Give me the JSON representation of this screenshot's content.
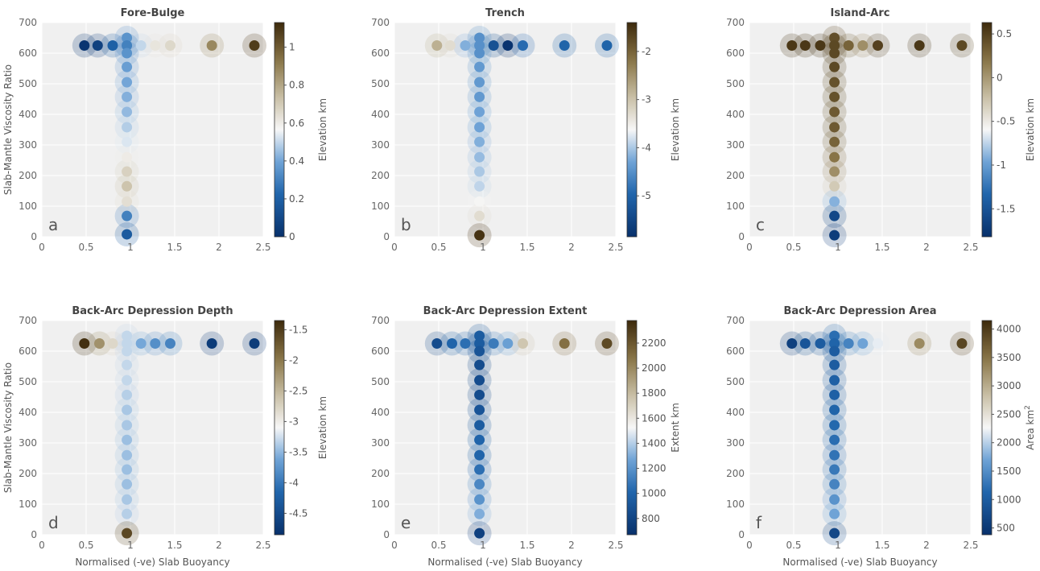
{
  "figure": {
    "ylabel": "Slab-Mantle Viscosity Ratio",
    "xlabel": "Normalised (-ve) Slab Buoyancy"
  },
  "colors": {
    "plot_bg": "#f0f0f0",
    "grid": "#ffffff",
    "cmap_low": "#08306b",
    "cmap_mid": "#f7f7f7",
    "cmap_high": "#3d2a0c"
  },
  "chart_data": [
    {
      "type": "scatter",
      "letter": "a",
      "title": "Fore-Bulge",
      "colorbar_label": "Elevation km",
      "unit_sup": "",
      "clim": [
        0,
        1.13
      ],
      "cticks": [
        0,
        0.2,
        0.4,
        0.6,
        0.8,
        1
      ],
      "ylabel": "Slab-Mantle Viscosity Ratio",
      "xlabel": "",
      "xlim": [
        0,
        2.5
      ],
      "ylim": [
        0,
        700
      ],
      "xticks": [
        0,
        0.5,
        1,
        1.5,
        2,
        2.5
      ],
      "yticks": [
        0,
        100,
        200,
        300,
        400,
        500,
        600,
        700
      ],
      "points": [
        {
          "x": 0.48,
          "y": 625,
          "v": 0.02
        },
        {
          "x": 0.63,
          "y": 625,
          "v": 0.07
        },
        {
          "x": 0.8,
          "y": 625,
          "v": 0.2
        },
        {
          "x": 1.12,
          "y": 625,
          "v": 0.5
        },
        {
          "x": 1.28,
          "y": 625,
          "v": 0.62
        },
        {
          "x": 1.45,
          "y": 625,
          "v": 0.66
        },
        {
          "x": 1.92,
          "y": 625,
          "v": 0.88
        },
        {
          "x": 2.4,
          "y": 625,
          "v": 1.08
        },
        {
          "x": 0.96,
          "y": 650,
          "v": 0.35
        },
        {
          "x": 0.96,
          "y": 625,
          "v": 0.3
        },
        {
          "x": 0.96,
          "y": 600,
          "v": 0.35
        },
        {
          "x": 0.96,
          "y": 555,
          "v": 0.38
        },
        {
          "x": 0.96,
          "y": 505,
          "v": 0.4
        },
        {
          "x": 0.96,
          "y": 457,
          "v": 0.42
        },
        {
          "x": 0.96,
          "y": 408,
          "v": 0.44
        },
        {
          "x": 0.96,
          "y": 358,
          "v": 0.48
        },
        {
          "x": 0.96,
          "y": 310,
          "v": 0.53
        },
        {
          "x": 0.96,
          "y": 260,
          "v": 0.6
        },
        {
          "x": 0.96,
          "y": 213,
          "v": 0.68
        },
        {
          "x": 0.96,
          "y": 165,
          "v": 0.72
        },
        {
          "x": 0.96,
          "y": 115,
          "v": 0.64
        },
        {
          "x": 0.96,
          "y": 68,
          "v": 0.3
        },
        {
          "x": 0.96,
          "y": 8,
          "v": 0.18
        }
      ]
    },
    {
      "type": "scatter",
      "letter": "b",
      "title": "Trench",
      "colorbar_label": "Elevation km",
      "unit_sup": "",
      "clim": [
        -5.85,
        -1.4
      ],
      "cticks": [
        -5,
        -4,
        -3,
        -2
      ],
      "ylabel": "",
      "xlabel": "",
      "xlim": [
        0,
        2.5
      ],
      "ylim": [
        0,
        700
      ],
      "xticks": [
        0,
        0.5,
        1,
        1.5,
        2,
        2.5
      ],
      "yticks": [
        0,
        100,
        200,
        300,
        400,
        500,
        600,
        700
      ],
      "points": [
        {
          "x": 0.48,
          "y": 625,
          "v": -2.8
        },
        {
          "x": 0.63,
          "y": 625,
          "v": -3.3
        },
        {
          "x": 0.8,
          "y": 625,
          "v": -4.2
        },
        {
          "x": 1.12,
          "y": 625,
          "v": -5.3
        },
        {
          "x": 1.28,
          "y": 625,
          "v": -5.8
        },
        {
          "x": 1.45,
          "y": 625,
          "v": -4.9
        },
        {
          "x": 1.92,
          "y": 625,
          "v": -5.0
        },
        {
          "x": 2.4,
          "y": 625,
          "v": -5.0
        },
        {
          "x": 0.96,
          "y": 650,
          "v": -4.5
        },
        {
          "x": 0.96,
          "y": 625,
          "v": -4.5
        },
        {
          "x": 0.96,
          "y": 600,
          "v": -4.5
        },
        {
          "x": 0.96,
          "y": 555,
          "v": -4.4
        },
        {
          "x": 0.96,
          "y": 505,
          "v": -4.4
        },
        {
          "x": 0.96,
          "y": 457,
          "v": -4.4
        },
        {
          "x": 0.96,
          "y": 408,
          "v": -4.3
        },
        {
          "x": 0.96,
          "y": 358,
          "v": -4.3
        },
        {
          "x": 0.96,
          "y": 310,
          "v": -4.2
        },
        {
          "x": 0.96,
          "y": 260,
          "v": -4.1
        },
        {
          "x": 0.96,
          "y": 213,
          "v": -4.0
        },
        {
          "x": 0.96,
          "y": 165,
          "v": -3.9
        },
        {
          "x": 0.96,
          "y": 115,
          "v": -3.6
        },
        {
          "x": 0.96,
          "y": 68,
          "v": -3.3
        },
        {
          "x": 0.96,
          "y": 5,
          "v": -1.5
        }
      ]
    },
    {
      "type": "scatter",
      "letter": "c",
      "title": "Island-Arc",
      "colorbar_label": "Elevation km",
      "unit_sup": "",
      "clim": [
        -1.82,
        0.63
      ],
      "cticks": [
        -1.5,
        -1,
        -0.5,
        0,
        0.5
      ],
      "ylabel": "",
      "xlabel": "",
      "xlim": [
        0,
        2.5
      ],
      "ylim": [
        0,
        700
      ],
      "xticks": [
        0,
        0.5,
        1,
        1.5,
        2,
        2.5
      ],
      "yticks": [
        0,
        100,
        200,
        300,
        400,
        500,
        600,
        700
      ],
      "points": [
        {
          "x": 0.48,
          "y": 625,
          "v": 0.55
        },
        {
          "x": 0.63,
          "y": 625,
          "v": 0.55
        },
        {
          "x": 0.8,
          "y": 625,
          "v": 0.55
        },
        {
          "x": 1.12,
          "y": 625,
          "v": 0.3
        },
        {
          "x": 1.28,
          "y": 625,
          "v": 0.05
        },
        {
          "x": 1.45,
          "y": 625,
          "v": 0.5
        },
        {
          "x": 1.92,
          "y": 625,
          "v": 0.55
        },
        {
          "x": 2.4,
          "y": 625,
          "v": 0.45
        },
        {
          "x": 0.96,
          "y": 650,
          "v": 0.42
        },
        {
          "x": 0.96,
          "y": 625,
          "v": 0.45
        },
        {
          "x": 0.96,
          "y": 600,
          "v": 0.45
        },
        {
          "x": 0.96,
          "y": 555,
          "v": 0.45
        },
        {
          "x": 0.96,
          "y": 505,
          "v": 0.4
        },
        {
          "x": 0.96,
          "y": 457,
          "v": 0.4
        },
        {
          "x": 0.96,
          "y": 408,
          "v": 0.35
        },
        {
          "x": 0.96,
          "y": 358,
          "v": 0.35
        },
        {
          "x": 0.96,
          "y": 310,
          "v": 0.3
        },
        {
          "x": 0.96,
          "y": 260,
          "v": 0.2
        },
        {
          "x": 0.96,
          "y": 213,
          "v": 0.05
        },
        {
          "x": 0.96,
          "y": 165,
          "v": -0.3
        },
        {
          "x": 0.96,
          "y": 115,
          "v": -0.9
        },
        {
          "x": 0.96,
          "y": 68,
          "v": -1.6
        },
        {
          "x": 0.96,
          "y": 5,
          "v": -1.7
        }
      ]
    },
    {
      "type": "scatter",
      "letter": "d",
      "title": "Back-Arc Depression Depth",
      "colorbar_label": "Elevation km",
      "unit_sup": "",
      "clim": [
        -4.85,
        -1.35
      ],
      "cticks": [
        -4.5,
        -4,
        -3.5,
        -3,
        -2.5,
        -2,
        -1.5
      ],
      "ylabel": "Slab-Mantle Viscosity Ratio",
      "xlabel": "Normalised (-ve) Slab Buoyancy",
      "xlim": [
        0,
        2.5
      ],
      "ylim": [
        0,
        700
      ],
      "xticks": [
        0,
        0.5,
        1,
        1.5,
        2,
        2.5
      ],
      "yticks": [
        0,
        100,
        200,
        300,
        400,
        500,
        600,
        700
      ],
      "points": [
        {
          "x": 0.48,
          "y": 625,
          "v": -1.4
        },
        {
          "x": 0.65,
          "y": 625,
          "v": -2.2
        },
        {
          "x": 0.8,
          "y": 625,
          "v": -2.8
        },
        {
          "x": 1.12,
          "y": 625,
          "v": -3.6
        },
        {
          "x": 1.28,
          "y": 625,
          "v": -3.8
        },
        {
          "x": 1.45,
          "y": 625,
          "v": -3.9
        },
        {
          "x": 1.92,
          "y": 625,
          "v": -4.7
        },
        {
          "x": 2.4,
          "y": 625,
          "v": -4.7
        },
        {
          "x": 0.96,
          "y": 650,
          "v": -3.3
        },
        {
          "x": 0.96,
          "y": 625,
          "v": -3.3
        },
        {
          "x": 0.96,
          "y": 600,
          "v": -3.3
        },
        {
          "x": 0.96,
          "y": 555,
          "v": -3.3
        },
        {
          "x": 0.96,
          "y": 505,
          "v": -3.3
        },
        {
          "x": 0.96,
          "y": 457,
          "v": -3.35
        },
        {
          "x": 0.96,
          "y": 408,
          "v": -3.4
        },
        {
          "x": 0.96,
          "y": 358,
          "v": -3.4
        },
        {
          "x": 0.96,
          "y": 310,
          "v": -3.45
        },
        {
          "x": 0.96,
          "y": 260,
          "v": -3.45
        },
        {
          "x": 0.96,
          "y": 213,
          "v": -3.45
        },
        {
          "x": 0.96,
          "y": 165,
          "v": -3.45
        },
        {
          "x": 0.96,
          "y": 115,
          "v": -3.4
        },
        {
          "x": 0.96,
          "y": 68,
          "v": -3.35
        },
        {
          "x": 0.96,
          "y": 5,
          "v": -1.6
        }
      ]
    },
    {
      "type": "scatter",
      "letter": "e",
      "title": "Back-Arc Depression Extent",
      "colorbar_label": "Extent km",
      "unit_sup": "",
      "clim": [
        670,
        2380
      ],
      "cticks": [
        800,
        1000,
        1200,
        1400,
        1600,
        1800,
        2000,
        2200
      ],
      "ylabel": "",
      "xlabel": "Normalised (-ve) Slab Buoyancy",
      "xlim": [
        0,
        2.5
      ],
      "ylim": [
        0,
        700
      ],
      "xticks": [
        0,
        0.5,
        1,
        1.5,
        2,
        2.5
      ],
      "yticks": [
        0,
        100,
        200,
        300,
        400,
        500,
        600,
        700
      ],
      "points": [
        {
          "x": 0.48,
          "y": 625,
          "v": 850
        },
        {
          "x": 0.65,
          "y": 625,
          "v": 1000
        },
        {
          "x": 0.8,
          "y": 625,
          "v": 1050
        },
        {
          "x": 1.12,
          "y": 625,
          "v": 1100
        },
        {
          "x": 1.28,
          "y": 625,
          "v": 1250
        },
        {
          "x": 1.45,
          "y": 625,
          "v": 1750
        },
        {
          "x": 1.92,
          "y": 625,
          "v": 2100
        },
        {
          "x": 2.4,
          "y": 625,
          "v": 2250
        },
        {
          "x": 0.96,
          "y": 650,
          "v": 950
        },
        {
          "x": 0.96,
          "y": 625,
          "v": 950
        },
        {
          "x": 0.96,
          "y": 600,
          "v": 900
        },
        {
          "x": 0.96,
          "y": 555,
          "v": 850
        },
        {
          "x": 0.96,
          "y": 505,
          "v": 850
        },
        {
          "x": 0.96,
          "y": 457,
          "v": 850
        },
        {
          "x": 0.96,
          "y": 408,
          "v": 900
        },
        {
          "x": 0.96,
          "y": 358,
          "v": 950
        },
        {
          "x": 0.96,
          "y": 310,
          "v": 1000
        },
        {
          "x": 0.96,
          "y": 260,
          "v": 1000
        },
        {
          "x": 0.96,
          "y": 213,
          "v": 1050
        },
        {
          "x": 0.96,
          "y": 165,
          "v": 1150
        },
        {
          "x": 0.96,
          "y": 115,
          "v": 1200
        },
        {
          "x": 0.96,
          "y": 68,
          "v": 1300
        },
        {
          "x": 0.96,
          "y": 5,
          "v": 780
        }
      ]
    },
    {
      "type": "scatter",
      "letter": "f",
      "title": "Back-Arc Depression Area",
      "colorbar_label": "Area km",
      "unit_sup": "2",
      "clim": [
        380,
        4150
      ],
      "cticks": [
        500,
        1000,
        1500,
        2000,
        2500,
        3000,
        3500,
        4000
      ],
      "ylabel": "",
      "xlabel": "Normalised (-ve) Slab Buoyancy",
      "xlim": [
        0,
        2.5
      ],
      "ylim": [
        0,
        700
      ],
      "xticks": [
        0,
        0.5,
        1,
        1.5,
        2,
        2.5
      ],
      "yticks": [
        0,
        100,
        200,
        300,
        400,
        500,
        600,
        700
      ],
      "points": [
        {
          "x": 0.48,
          "y": 625,
          "v": 600
        },
        {
          "x": 0.63,
          "y": 625,
          "v": 900
        },
        {
          "x": 0.8,
          "y": 625,
          "v": 1000
        },
        {
          "x": 1.12,
          "y": 625,
          "v": 1400
        },
        {
          "x": 1.28,
          "y": 625,
          "v": 1700
        },
        {
          "x": 1.45,
          "y": 625,
          "v": 2200
        },
        {
          "x": 1.92,
          "y": 625,
          "v": 3300
        },
        {
          "x": 2.4,
          "y": 625,
          "v": 3900
        },
        {
          "x": 0.96,
          "y": 650,
          "v": 1200
        },
        {
          "x": 0.96,
          "y": 625,
          "v": 1100
        },
        {
          "x": 0.96,
          "y": 600,
          "v": 1000
        },
        {
          "x": 0.96,
          "y": 555,
          "v": 1000
        },
        {
          "x": 0.96,
          "y": 505,
          "v": 1050
        },
        {
          "x": 0.96,
          "y": 457,
          "v": 1050
        },
        {
          "x": 0.96,
          "y": 408,
          "v": 1100
        },
        {
          "x": 0.96,
          "y": 358,
          "v": 1150
        },
        {
          "x": 0.96,
          "y": 310,
          "v": 1200
        },
        {
          "x": 0.96,
          "y": 260,
          "v": 1250
        },
        {
          "x": 0.96,
          "y": 213,
          "v": 1300
        },
        {
          "x": 0.96,
          "y": 165,
          "v": 1400
        },
        {
          "x": 0.96,
          "y": 115,
          "v": 1550
        },
        {
          "x": 0.96,
          "y": 68,
          "v": 1700
        },
        {
          "x": 0.96,
          "y": 5,
          "v": 700
        }
      ]
    }
  ]
}
